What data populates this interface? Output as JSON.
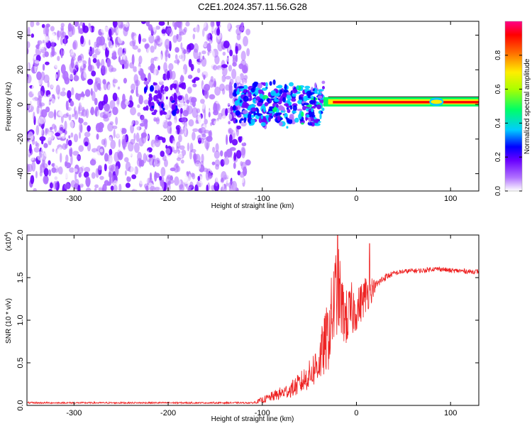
{
  "figure": {
    "title": "C2E1.2024.357.11.56.G28"
  },
  "chart_data": [
    {
      "type": "heatmap",
      "xlabel": "Height of straight line (km)",
      "ylabel": "Frequency (Hz)",
      "xlim": [
        -350,
        130
      ],
      "ylim": [
        -50,
        48
      ],
      "xticks": [
        -300,
        -200,
        -100,
        0,
        100
      ],
      "yticks": [
        -40,
        -20,
        0,
        20,
        40
      ],
      "grid": false,
      "colorbar": {
        "label": "Normalized spectral amplitude",
        "range": [
          0.0,
          1.0
        ],
        "ticks": [
          "0.0",
          "0.2",
          "0.4",
          "0.6",
          "0.8"
        ],
        "colormap": [
          "#ffffff",
          "#8800ff",
          "#0000ff",
          "#00ffff",
          "#00ff00",
          "#ffff00",
          "#ff0000",
          "#ff0088"
        ]
      },
      "features": [
        {
          "description_range_km": [
            -350,
            -120
          ],
          "frequency_spread_hz": [
            -50,
            48
          ],
          "amplitude": 0.1
        },
        {
          "description_range_km": [
            -130,
            -30
          ],
          "frequency_spread_hz": [
            -15,
            12
          ],
          "amplitude": 0.35
        },
        {
          "description_range_km": [
            -30,
            130
          ],
          "frequency_center_hz": 1,
          "frequency_spread_hz": [
            -2,
            3
          ],
          "amplitude": 0.95
        }
      ],
      "colors": {
        "line": "#000000"
      }
    },
    {
      "type": "line",
      "xlabel": "Height of straight line (km)",
      "ylabel": "SNR (10 * v/v)",
      "y_multiplier": "(x10",
      "y_multiplier_exp": "4",
      "y_multiplier_close": ")",
      "xlim": [
        -350,
        130
      ],
      "ylim": [
        0,
        2.0
      ],
      "xticks": [
        -300,
        -200,
        -100,
        0,
        100
      ],
      "yticks": [
        "0.0",
        "0.5",
        "1.0",
        "1.5",
        "2.0"
      ],
      "grid": false,
      "series": [
        {
          "color": "#ee2222",
          "x": [
            -350,
            -300,
            -250,
            -200,
            -150,
            -110,
            -100,
            -90,
            -80,
            -70,
            -60,
            -50,
            -40,
            -30,
            -25,
            -20,
            -15,
            -10,
            -5,
            0,
            5,
            10,
            15,
            20,
            30,
            40,
            50,
            60,
            70,
            80,
            90,
            100,
            110,
            120,
            130
          ],
          "y": [
            0.03,
            0.03,
            0.03,
            0.03,
            0.03,
            0.03,
            0.06,
            0.1,
            0.14,
            0.18,
            0.25,
            0.35,
            0.5,
            0.8,
            1.1,
            1.4,
            1.1,
            1.0,
            1.1,
            1.1,
            1.2,
            1.3,
            1.35,
            1.4,
            1.5,
            1.55,
            1.57,
            1.58,
            1.58,
            1.6,
            1.6,
            1.58,
            1.58,
            1.57,
            1.57
          ],
          "noise": [
            0.01,
            0.01,
            0.01,
            0.01,
            0.01,
            0.01,
            0.04,
            0.06,
            0.08,
            0.1,
            0.14,
            0.18,
            0.28,
            0.45,
            0.55,
            0.6,
            0.4,
            0.35,
            0.35,
            0.25,
            0.25,
            0.25,
            0.2,
            0.06,
            0.05,
            0.03,
            0.03,
            0.03,
            0.03,
            0.03,
            0.03,
            0.03,
            0.03,
            0.03,
            0.03
          ],
          "spikes": [
            {
              "x": -20,
              "y": 2.0
            },
            {
              "x": 14,
              "y": 1.9
            }
          ]
        }
      ]
    }
  ]
}
